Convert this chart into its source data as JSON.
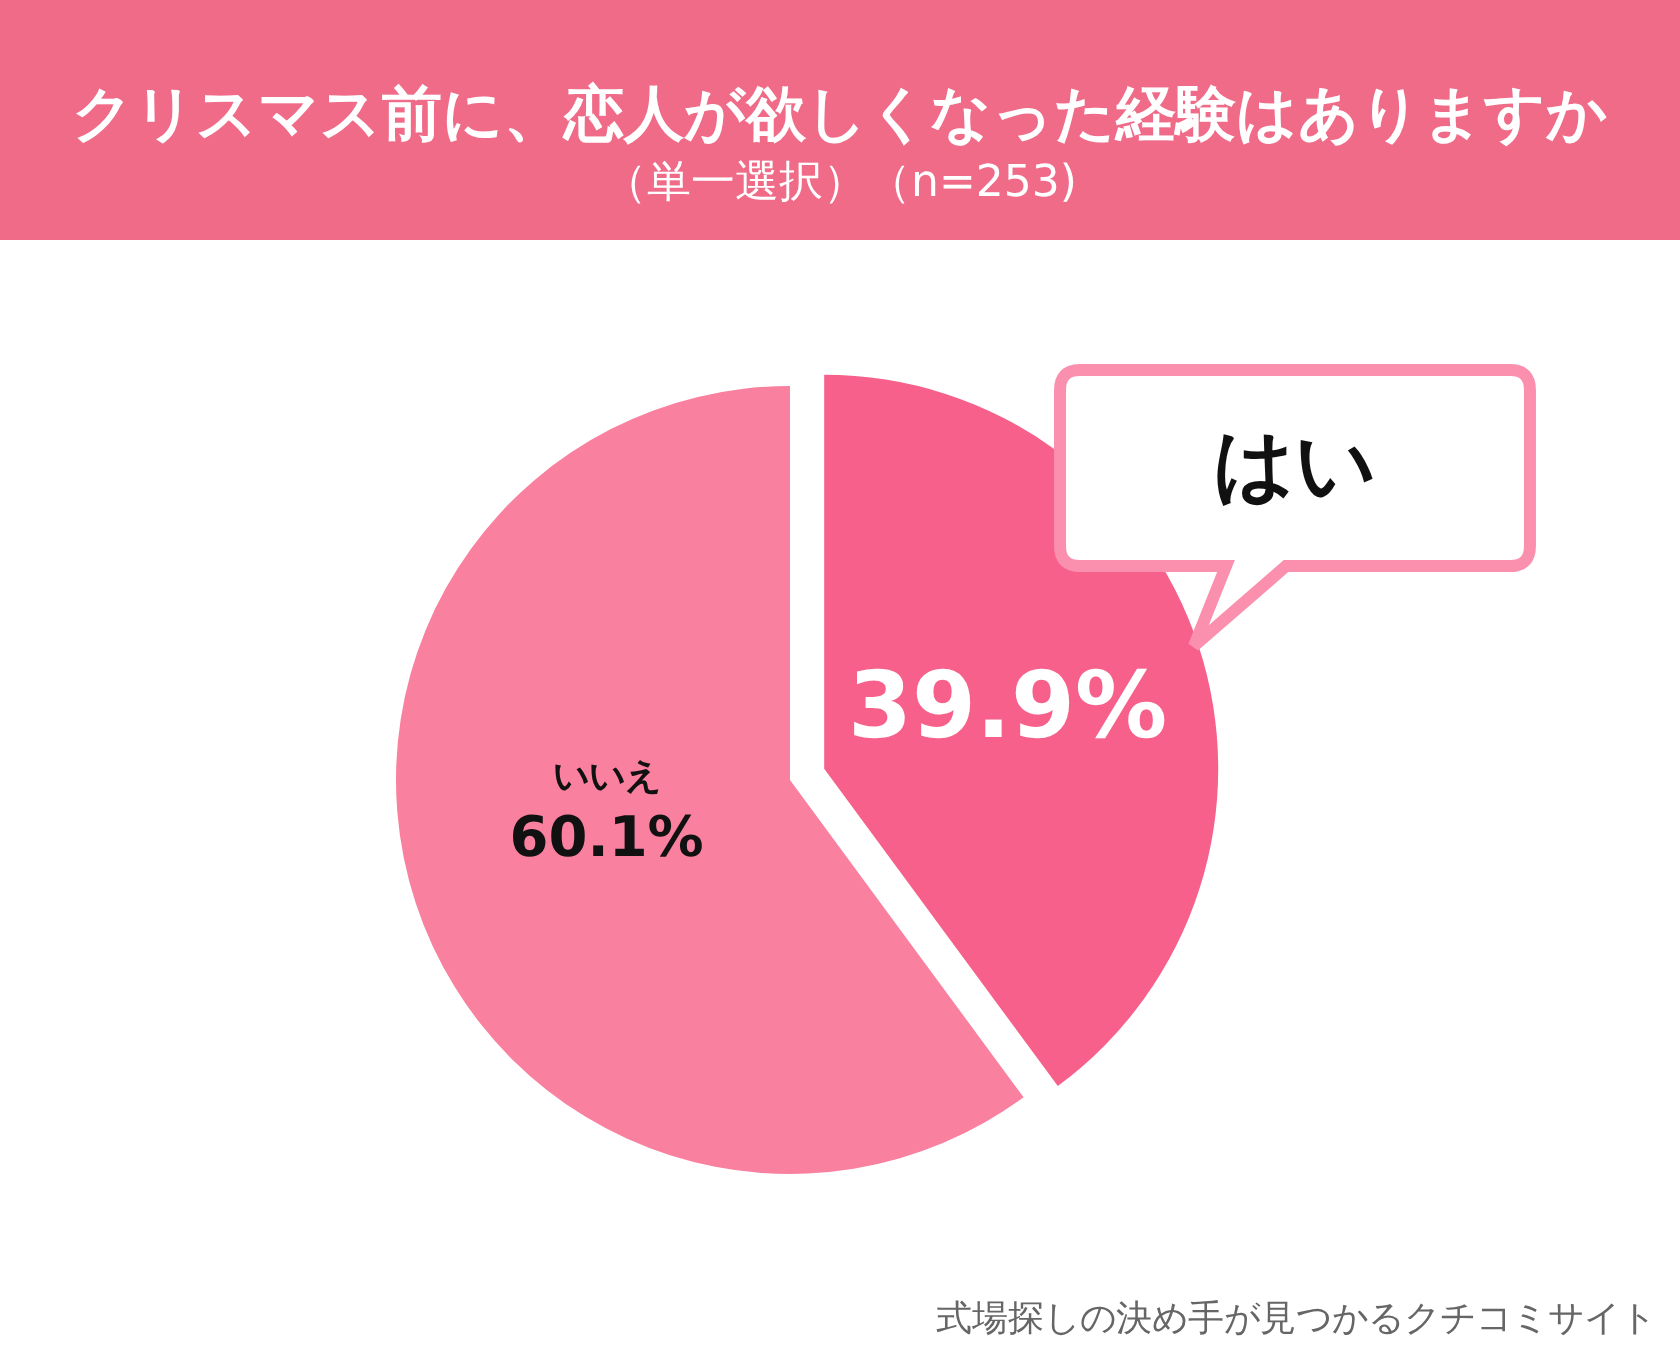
{
  "chart_data": {
    "type": "pie",
    "title": "クリスマス前に、恋人が欲しくなった経験はありますか",
    "subtitle": "（単一選択）（n=253)",
    "categories": [
      "はい",
      "いいえ"
    ],
    "values": [
      39.9,
      60.1
    ],
    "colors": [
      "#f7608a",
      "#f9809f"
    ],
    "value_labels": [
      "39.9%",
      "60.1%"
    ],
    "annotations": [
      "式場探しの決め手が見つかるクチコミサイト"
    ]
  }
}
